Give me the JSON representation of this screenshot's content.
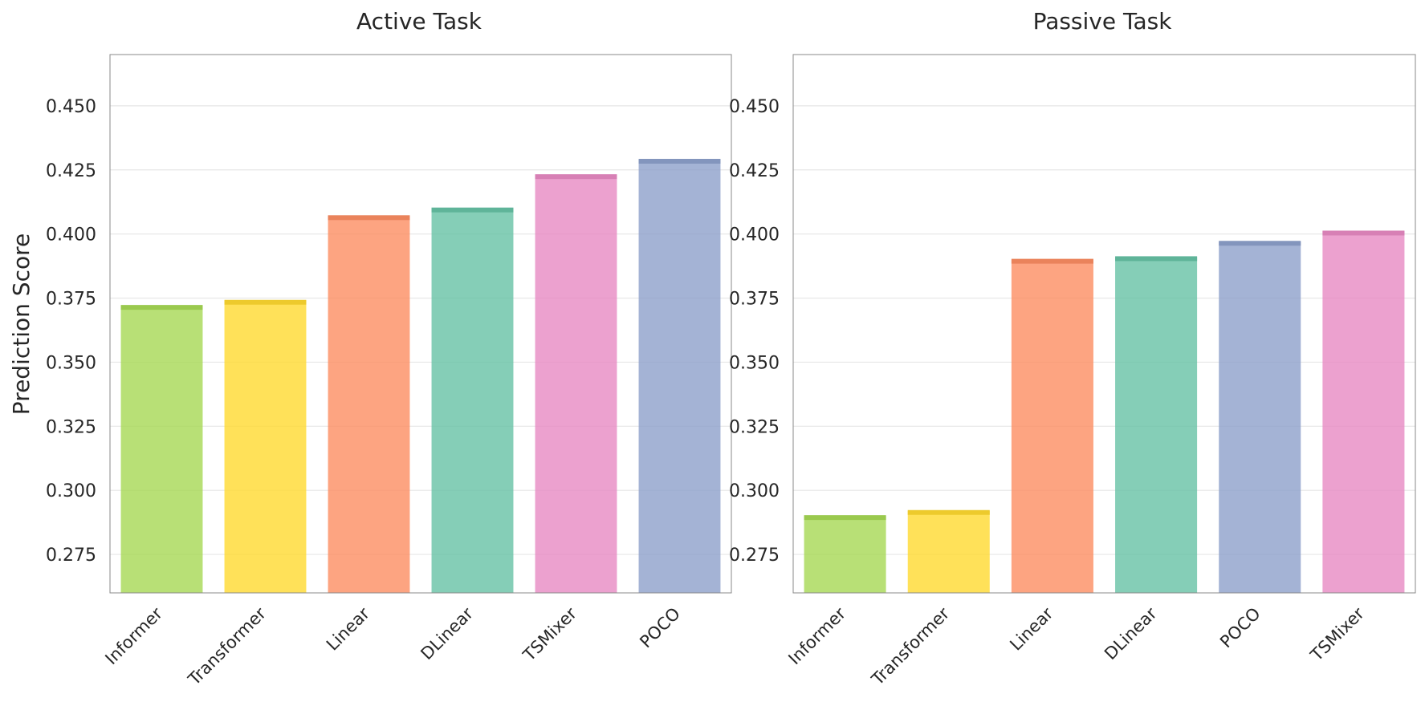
{
  "colors": {
    "Informer": "#a6d854",
    "Transformer": "#ffd92f",
    "Linear": "#fc8d62",
    "DLinear": "#66c2a5",
    "TSMixer": "#e78ac3",
    "POCO": "#8da0cb"
  },
  "chart_data": [
    {
      "type": "bar",
      "title": "Active Task",
      "xlabel": "",
      "ylabel": "Prediction Score",
      "ylim": [
        0.26,
        0.47
      ],
      "yticks": [
        "0.275",
        "0.300",
        "0.325",
        "0.350",
        "0.375",
        "0.400",
        "0.425",
        "0.450"
      ],
      "grid": true,
      "categories": [
        "Informer",
        "Transformer",
        "Linear",
        "DLinear",
        "TSMixer",
        "POCO"
      ],
      "values": [
        0.372,
        0.374,
        0.407,
        0.41,
        0.423,
        0.429
      ]
    },
    {
      "type": "bar",
      "title": "Passive Task",
      "xlabel": "",
      "ylabel": "",
      "ylim": [
        0.26,
        0.47
      ],
      "yticks": [
        "0.275",
        "0.300",
        "0.325",
        "0.350",
        "0.375",
        "0.400",
        "0.425",
        "0.450"
      ],
      "grid": true,
      "categories": [
        "Informer",
        "Transformer",
        "Linear",
        "DLinear",
        "POCO",
        "TSMixer"
      ],
      "values": [
        0.29,
        0.292,
        0.39,
        0.391,
        0.397,
        0.401
      ]
    }
  ]
}
